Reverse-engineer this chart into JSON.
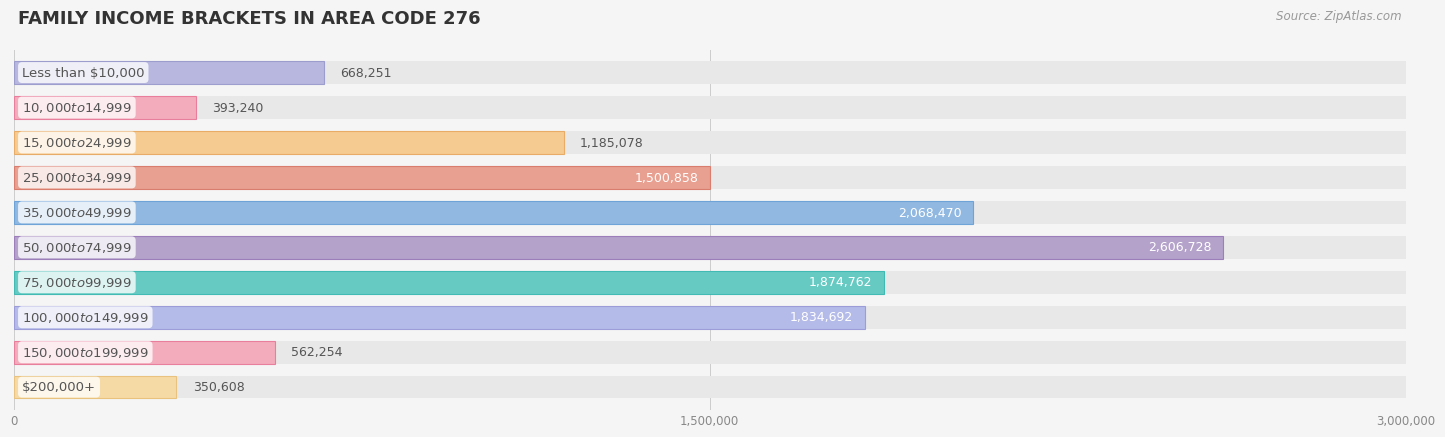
{
  "title": "FAMILY INCOME BRACKETS IN AREA CODE 276",
  "source": "Source: ZipAtlas.com",
  "categories": [
    "Less than $10,000",
    "$10,000 to $14,999",
    "$15,000 to $24,999",
    "$25,000 to $34,999",
    "$35,000 to $49,999",
    "$50,000 to $74,999",
    "$75,000 to $99,999",
    "$100,000 to $149,999",
    "$150,000 to $199,999",
    "$200,000+"
  ],
  "values": [
    668251,
    393240,
    1185078,
    1500858,
    2068470,
    2606728,
    1874762,
    1834692,
    562254,
    350608
  ],
  "value_labels": [
    "668,251",
    "393,240",
    "1,185,078",
    "1,500,858",
    "2,068,470",
    "2,606,728",
    "1,874,762",
    "1,834,692",
    "562,254",
    "350,608"
  ],
  "bar_colors": [
    "#b3b3e0",
    "#f4a7b9",
    "#f8c98a",
    "#e89a8a",
    "#8ab4e0",
    "#b09cc8",
    "#5bc8c0",
    "#b0b8e8",
    "#f4a7b9",
    "#f8d9a0"
  ],
  "bar_edge_colors": [
    "#9898cc",
    "#e87898",
    "#e8a860",
    "#d87868",
    "#68a0d8",
    "#9878b8",
    "#38b8b0",
    "#9898d8",
    "#e87898",
    "#e8c078"
  ],
  "bg_color": "#f5f5f5",
  "bar_bg_color": "#e8e8e8",
  "xlim": [
    0,
    3000000
  ],
  "xticks": [
    0,
    1500000,
    3000000
  ],
  "xticklabels": [
    "0",
    "1,500,000",
    "3,000,000"
  ],
  "value_label_inside_threshold": 1500000,
  "title_fontsize": 13,
  "label_fontsize": 9.5,
  "value_fontsize": 9,
  "source_fontsize": 8.5
}
